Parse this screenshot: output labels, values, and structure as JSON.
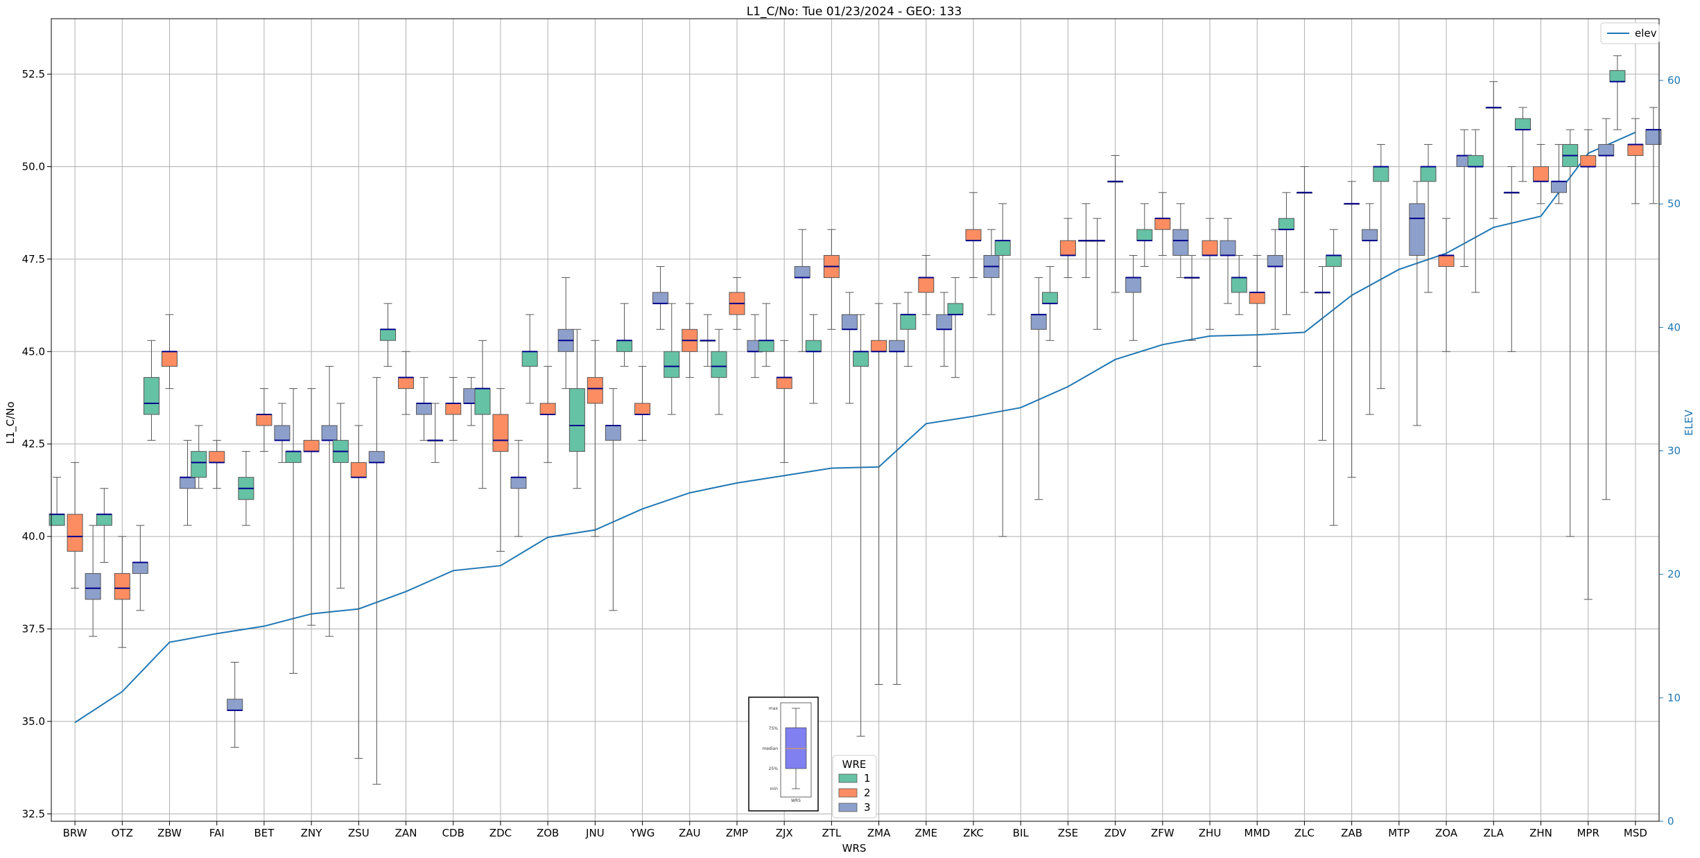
{
  "chart_data": {
    "type": "box",
    "title": "L1_C/No: Tue 01/23/2024 - GEO: 133",
    "xlabel": "WRS",
    "ylabel": "L1_C/No",
    "y2label": "ELEV",
    "ylim": [
      32.3,
      54.0
    ],
    "y2lim": [
      0,
      65
    ],
    "yticks": [
      "32.5",
      "35.0",
      "37.5",
      "40.0",
      "42.5",
      "45.0",
      "47.5",
      "50.0",
      "52.5"
    ],
    "y2ticks": [
      "0",
      "10",
      "20",
      "30",
      "40",
      "50",
      "60"
    ],
    "grid": true,
    "categories": [
      "BRW",
      "OTZ",
      "ZBW",
      "FAI",
      "BET",
      "ZNY",
      "ZSU",
      "ZAN",
      "CDB",
      "ZDC",
      "ZOB",
      "JNU",
      "YWG",
      "ZAU",
      "ZMP",
      "ZJX",
      "ZTL",
      "ZMA",
      "ZME",
      "ZKC",
      "BIL",
      "ZSE",
      "ZDV",
      "ZFW",
      "ZHU",
      "MMD",
      "ZLC",
      "ZAB",
      "MTP",
      "ZOA",
      "ZLA",
      "ZHN",
      "MPR",
      "MSD"
    ],
    "colors": {
      "1": "#66c2a5",
      "2": "#fc8d62",
      "3": "#8da0cb",
      "median": "#00008b",
      "elev": "#1f77b4"
    },
    "wre_legend": {
      "title": "WRE",
      "entries": [
        "1",
        "2",
        "3"
      ]
    },
    "elev_legend": "elev",
    "boxes": {
      "BRW": {
        "1": [
          40.3,
          40.3,
          40.6,
          40.6,
          41.6
        ],
        "2": [
          38.6,
          39.6,
          40.0,
          40.6,
          42.0
        ],
        "3": [
          37.3,
          38.3,
          38.6,
          39.0,
          40.3
        ]
      },
      "OTZ": {
        "1": [
          39.3,
          40.3,
          40.6,
          40.6,
          41.3
        ],
        "2": [
          37.0,
          38.3,
          38.6,
          39.0,
          40.0
        ],
        "3": [
          38.0,
          39.0,
          39.3,
          39.3,
          40.3
        ]
      },
      "ZBW": {
        "1": [
          42.6,
          43.3,
          43.6,
          44.3,
          45.3
        ],
        "2": [
          44.0,
          44.6,
          45.0,
          45.0,
          46.0
        ],
        "3": [
          40.3,
          41.3,
          41.6,
          41.6,
          42.6
        ]
      },
      "FAI": {
        "1": [
          41.3,
          41.6,
          42.0,
          42.3,
          43.0
        ],
        "2": [
          41.3,
          42.0,
          42.0,
          42.3,
          42.6
        ],
        "3": [
          34.3,
          35.3,
          35.3,
          35.6,
          36.6
        ]
      },
      "BET": {
        "1": [
          40.3,
          41.0,
          41.3,
          41.6,
          42.3
        ],
        "2": [
          42.3,
          43.0,
          43.3,
          43.3,
          44.0
        ],
        "3": [
          42.0,
          42.6,
          42.6,
          43.0,
          43.6
        ]
      },
      "ZNY": {
        "1": [
          36.3,
          42.0,
          42.3,
          42.3,
          44.0
        ],
        "2": [
          37.6,
          42.3,
          42.3,
          42.6,
          44.0
        ],
        "3": [
          37.3,
          42.6,
          42.6,
          43.0,
          44.6
        ]
      },
      "ZSU": {
        "1": [
          38.6,
          42.0,
          42.3,
          42.6,
          43.6
        ],
        "2": [
          34.0,
          41.6,
          41.6,
          42.0,
          43.0
        ],
        "3": [
          33.3,
          42.0,
          42.0,
          42.3,
          44.3
        ]
      },
      "ZAN": {
        "1": [
          44.6,
          45.3,
          45.6,
          45.6,
          46.3
        ],
        "2": [
          43.3,
          44.0,
          44.3,
          44.3,
          45.0
        ],
        "3": [
          42.6,
          43.3,
          43.6,
          43.6,
          44.3
        ]
      },
      "CDB": {
        "1": [
          42.0,
          42.6,
          42.6,
          42.6,
          43.6
        ],
        "2": [
          42.6,
          43.3,
          43.6,
          43.6,
          44.3
        ],
        "3": [
          43.0,
          43.6,
          43.6,
          44.0,
          44.3
        ]
      },
      "ZDC": {
        "1": [
          41.3,
          43.3,
          44.0,
          44.0,
          45.3
        ],
        "2": [
          39.6,
          42.3,
          42.6,
          43.3,
          44.0
        ],
        "3": [
          40.0,
          41.3,
          41.6,
          41.6,
          42.6
        ]
      },
      "ZOB": {
        "1": [
          43.6,
          44.6,
          45.0,
          45.0,
          46.0
        ],
        "2": [
          42.0,
          43.3,
          43.3,
          43.6,
          44.6
        ],
        "3": [
          44.0,
          45.0,
          45.3,
          45.6,
          47.0
        ]
      },
      "JNU": {
        "1": [
          41.3,
          42.3,
          43.0,
          44.0,
          45.6
        ],
        "2": [
          40.0,
          43.6,
          44.0,
          44.3,
          45.3
        ],
        "3": [
          38.0,
          42.6,
          43.0,
          43.0,
          44.0
        ]
      },
      "YWG": {
        "1": [
          44.6,
          45.0,
          45.3,
          45.3,
          46.3
        ],
        "2": [
          42.6,
          43.3,
          43.3,
          43.6,
          44.6
        ],
        "3": [
          45.6,
          46.3,
          46.3,
          46.6,
          47.3
        ]
      },
      "ZAU": {
        "1": [
          43.3,
          44.3,
          44.6,
          45.0,
          46.3
        ],
        "2": [
          44.3,
          45.0,
          45.3,
          45.6,
          46.3
        ],
        "3": [
          44.6,
          45.3,
          45.3,
          45.3,
          46.0
        ]
      },
      "ZMP": {
        "1": [
          43.3,
          44.3,
          44.6,
          45.0,
          45.6
        ],
        "2": [
          45.6,
          46.0,
          46.3,
          46.6,
          47.0
        ],
        "3": [
          44.3,
          45.0,
          45.0,
          45.3,
          46.0
        ]
      },
      "ZJX": {
        "1": [
          44.6,
          45.0,
          45.3,
          45.3,
          46.3
        ],
        "2": [
          42.0,
          44.0,
          44.3,
          44.3,
          45.3
        ],
        "3": [
          45.0,
          47.0,
          47.0,
          47.3,
          48.3
        ]
      },
      "ZTL": {
        "1": [
          43.6,
          45.0,
          45.0,
          45.3,
          46.0
        ],
        "2": [
          45.6,
          47.0,
          47.3,
          47.6,
          48.3
        ],
        "3": [
          43.6,
          45.6,
          45.6,
          46.0,
          46.6
        ]
      },
      "ZMA": {
        "1": [
          34.6,
          44.6,
          45.0,
          45.0,
          46.0
        ],
        "2": [
          36.0,
          45.0,
          45.0,
          45.3,
          46.3
        ],
        "3": [
          36.0,
          45.0,
          45.0,
          45.3,
          46.3
        ]
      },
      "ZME": {
        "1": [
          44.6,
          45.6,
          46.0,
          46.0,
          46.6
        ],
        "2": [
          46.0,
          46.6,
          47.0,
          47.0,
          47.6
        ],
        "3": [
          44.6,
          45.6,
          45.6,
          46.0,
          46.6
        ]
      },
      "ZKC": {
        "1": [
          44.3,
          46.0,
          46.0,
          46.3,
          47.0
        ],
        "2": [
          47.0,
          48.0,
          48.0,
          48.3,
          49.3
        ],
        "3": [
          46.0,
          47.0,
          47.3,
          47.6,
          48.3
        ]
      },
      "BIL": {
        "1": [
          40.0,
          47.6,
          48.0,
          48.0,
          49.0
        ],
        "3": [
          41.0,
          45.6,
          46.0,
          46.0,
          47.0
        ]
      },
      "ZSE": {
        "1": [
          45.3,
          46.3,
          46.3,
          46.6,
          47.3
        ],
        "2": [
          47.0,
          47.6,
          47.6,
          48.0,
          48.6
        ],
        "3": [
          47.0,
          48.0,
          48.0,
          48.0,
          49.0
        ]
      },
      "ZDV": {
        "1": [
          45.6,
          48.0,
          48.0,
          48.0,
          48.6
        ],
        "2": [
          46.6,
          49.6,
          49.6,
          49.6,
          50.3
        ],
        "3": [
          45.3,
          46.6,
          47.0,
          47.0,
          47.6
        ]
      },
      "ZFW": {
        "1": [
          47.3,
          48.0,
          48.0,
          48.3,
          49.0
        ],
        "2": [
          47.6,
          48.3,
          48.6,
          48.6,
          49.3
        ],
        "3": [
          47.0,
          47.6,
          48.0,
          48.3,
          49.0
        ]
      },
      "ZHU": {
        "1": [
          45.3,
          47.0,
          47.0,
          47.0,
          47.6
        ],
        "2": [
          45.6,
          47.6,
          47.6,
          48.0,
          48.6
        ],
        "3": [
          46.3,
          47.6,
          47.6,
          48.0,
          48.6
        ]
      },
      "MMD": {
        "1": [
          46.0,
          46.6,
          47.0,
          47.0,
          47.6
        ],
        "2": [
          44.6,
          46.3,
          46.6,
          46.6,
          47.6
        ],
        "3": [
          45.6,
          47.3,
          47.3,
          47.6,
          48.3
        ]
      },
      "ZLC": {
        "1": [
          46.0,
          48.3,
          48.3,
          48.6,
          49.3
        ],
        "2": [
          46.6,
          49.3,
          49.3,
          49.3,
          50.0
        ],
        "3": [
          42.6,
          46.6,
          46.6,
          46.6,
          47.3
        ]
      },
      "ZAB": {
        "1": [
          40.3,
          47.3,
          47.6,
          47.6,
          48.3
        ],
        "2": [
          41.6,
          49.0,
          49.0,
          49.0,
          49.6
        ],
        "3": [
          43.3,
          48.0,
          48.0,
          48.3,
          49.0
        ]
      },
      "MTP": {
        "1": [
          44.0,
          49.6,
          50.0,
          50.0,
          50.6
        ],
        "3": [
          43.0,
          47.6,
          48.6,
          49.0,
          49.6
        ]
      },
      "ZOA": {
        "1": [
          46.6,
          49.6,
          50.0,
          50.0,
          50.6
        ],
        "2": [
          45.0,
          47.3,
          47.6,
          47.6,
          48.6
        ],
        "3": [
          47.3,
          50.0,
          50.3,
          50.3,
          51.0
        ]
      },
      "ZLA": {
        "1": [
          46.6,
          50.0,
          50.0,
          50.3,
          51.0
        ],
        "2": [
          48.6,
          51.6,
          51.6,
          51.6,
          52.3
        ],
        "3": [
          45.0,
          49.3,
          49.3,
          49.3,
          50.0
        ]
      },
      "ZHN": {
        "1": [
          49.6,
          51.0,
          51.0,
          51.3,
          51.6
        ],
        "2": [
          49.0,
          49.6,
          49.6,
          50.0,
          50.6
        ],
        "3": [
          49.0,
          49.3,
          49.6,
          49.6,
          50.6
        ]
      },
      "MPR": {
        "1": [
          40.0,
          50.0,
          50.3,
          50.6,
          51.0
        ],
        "2": [
          38.3,
          50.0,
          50.0,
          50.3,
          51.0
        ],
        "3": [
          41.0,
          50.3,
          50.3,
          50.6,
          51.3
        ]
      },
      "MSD": {
        "1": [
          51.0,
          52.3,
          52.3,
          52.6,
          53.0
        ],
        "2": [
          49.0,
          50.3,
          50.6,
          50.6,
          51.3
        ],
        "3": [
          49.0,
          50.6,
          51.0,
          51.0,
          51.6
        ]
      }
    },
    "elev": [
      8,
      10.5,
      14.5,
      15.2,
      15.8,
      16.8,
      17.2,
      18.6,
      20.3,
      20.7,
      23.0,
      23.6,
      25.3,
      26.6,
      27.4,
      28.0,
      28.6,
      28.7,
      32.2,
      32.8,
      33.5,
      35.2,
      37.4,
      38.6,
      39.3,
      39.4,
      39.6,
      42.6,
      44.7,
      46.0,
      48.1,
      49.0,
      54.1,
      55.8
    ]
  },
  "inset": {
    "labels": [
      "max",
      "75%",
      "median",
      "25%",
      "min"
    ],
    "xlabel": "WRS"
  }
}
